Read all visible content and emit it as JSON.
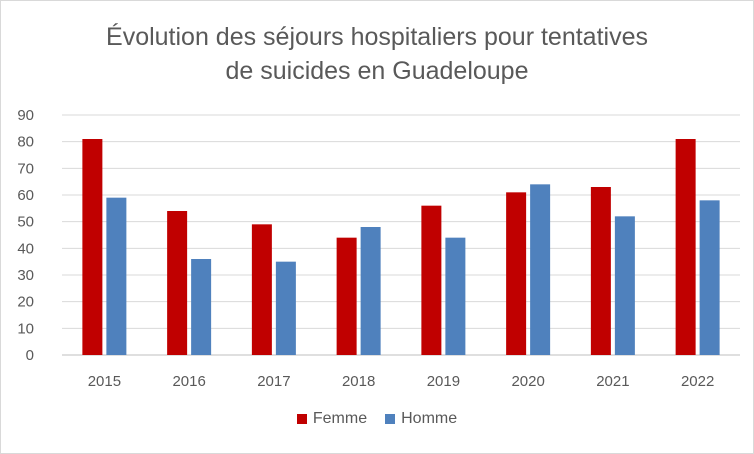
{
  "chart_data": {
    "type": "bar",
    "title_lines": [
      "Évolution des séjours hospitaliers pour tentatives",
      "de suicides en Guadeloupe"
    ],
    "categories": [
      "2015",
      "2016",
      "2017",
      "2018",
      "2019",
      "2020",
      "2021",
      "2022"
    ],
    "series": [
      {
        "name": "Femme",
        "color": "#c00000",
        "values": [
          81,
          54,
          49,
          44,
          56,
          61,
          63,
          81
        ]
      },
      {
        "name": "Homme",
        "color": "#4f81bd",
        "values": [
          59,
          36,
          35,
          48,
          44,
          64,
          52,
          58
        ]
      }
    ],
    "yticks": [
      "0",
      "10",
      "20",
      "30",
      "40",
      "50",
      "60",
      "70",
      "80",
      "90"
    ],
    "ylim": [
      0,
      90
    ],
    "grid": true,
    "legend_position": "bottom"
  }
}
